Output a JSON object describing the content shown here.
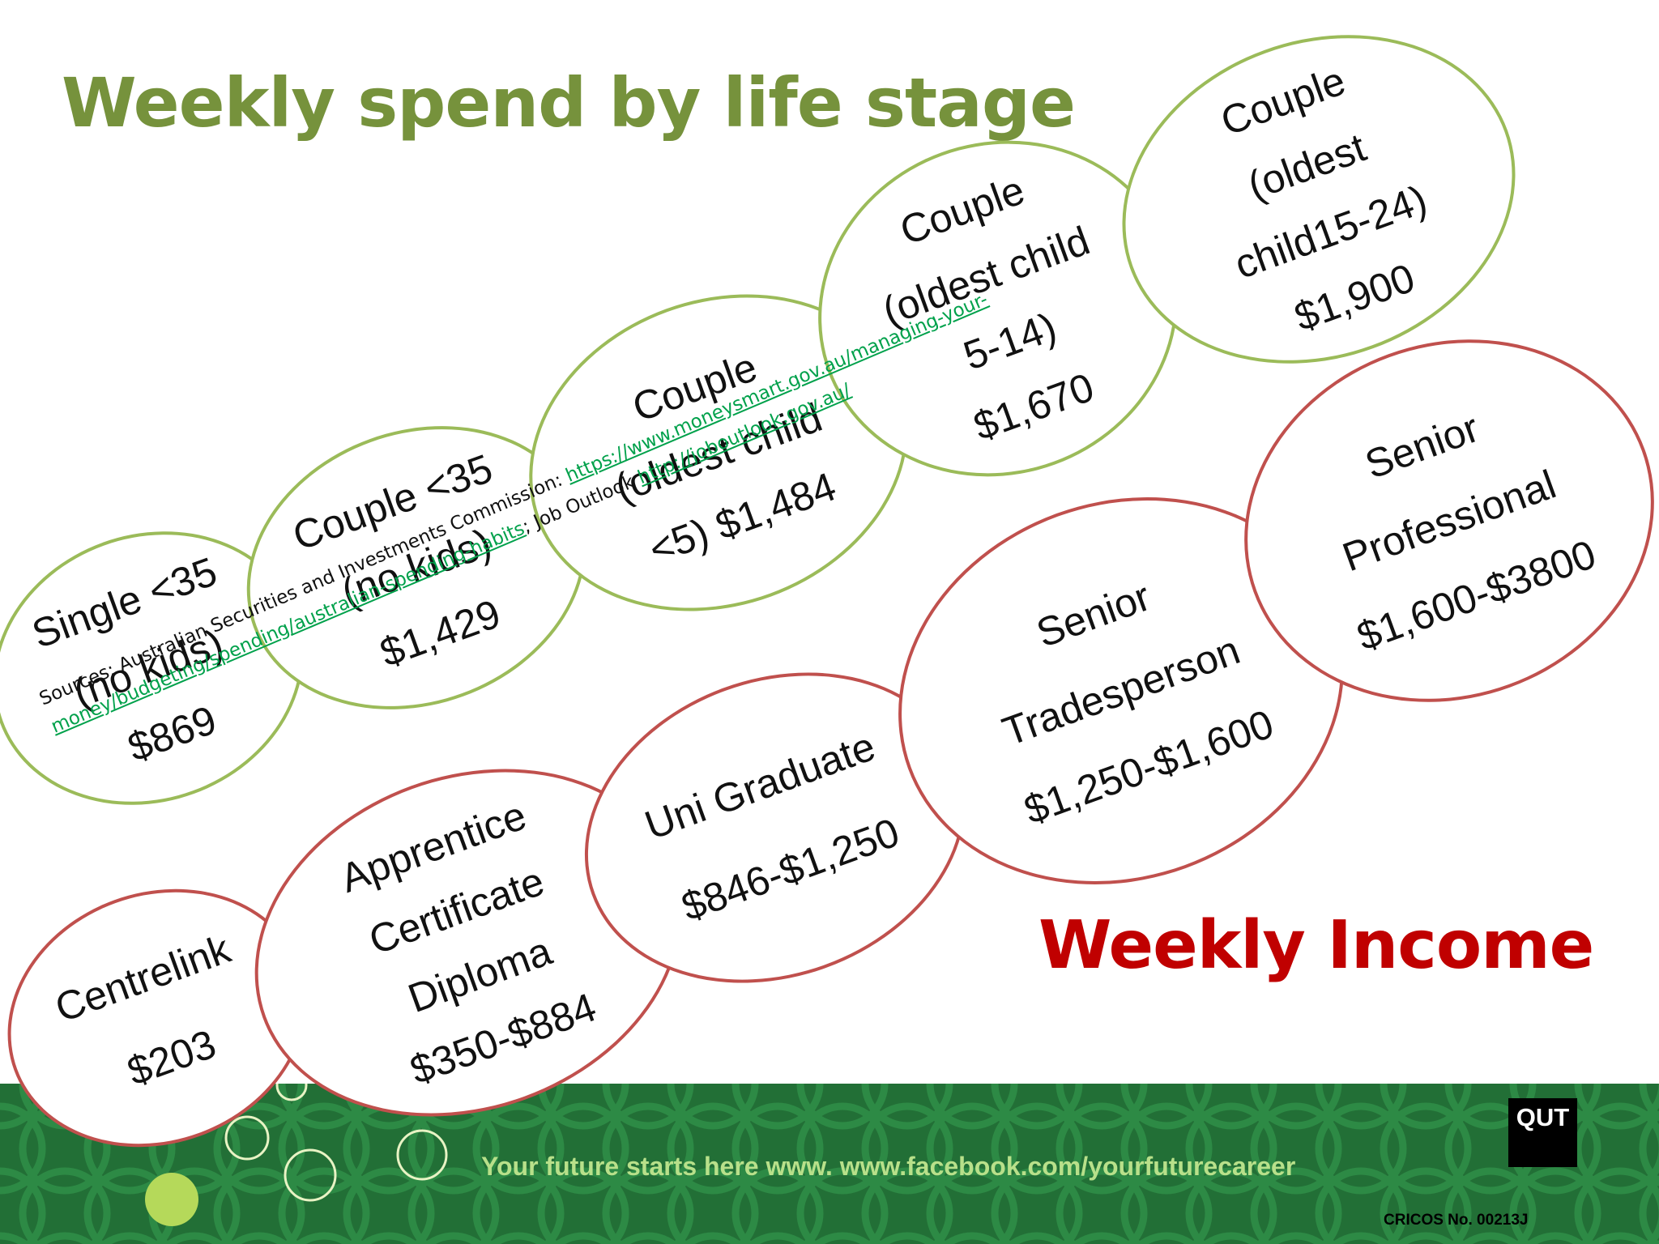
{
  "title": "Weekly spend by life stage",
  "income_label": "Weekly Income",
  "spend_bubbles": [
    {
      "lines": [
        "Single <35",
        "(no kids)",
        "$869"
      ]
    },
    {
      "lines": [
        "Couple <35",
        "(no kids)",
        "$1,429"
      ]
    },
    {
      "lines": [
        "Couple",
        "(oldest child",
        "<5) $1,484"
      ]
    },
    {
      "lines": [
        "Couple",
        "(oldest child",
        "5-14)",
        "$1,670"
      ]
    },
    {
      "lines": [
        "Couple",
        "(oldest",
        "child15-24)",
        "$1,900"
      ]
    }
  ],
  "income_bubbles": [
    {
      "lines": [
        "Centrelink",
        "$203"
      ]
    },
    {
      "lines": [
        "Apprentice",
        "Certificate",
        "Diploma",
        "$350-$884"
      ]
    },
    {
      "lines": [
        "Uni Graduate",
        "$846-$1,250"
      ]
    },
    {
      "lines": [
        "Senior",
        "Tradesperson",
        "$1,250-$1,600"
      ]
    },
    {
      "lines": [
        "Senior",
        "Professional",
        "$1,600-$3800"
      ]
    }
  ],
  "sources": {
    "prefix": "Sources: Australian Securities and Investments Commission: ",
    "asic_link": "https://www.moneysmart.gov.au/managing-your-money/budgeting/spending/australian-spending-habits",
    "separator": ";  Job Outlook ",
    "job_link": "http://joboutlook.gov.au/"
  },
  "footer": {
    "tagline": "Your future starts here www. www.facebook.com/yourfuturecareer",
    "logo_text": "QUT",
    "cricos": "CRICOS No. 00213J"
  },
  "colors": {
    "title_green": "#76923c",
    "spend_outline": "#9bbb59",
    "income_red": "#c00000",
    "income_outline": "#c0504d",
    "footer_green": "#1f6f33"
  }
}
